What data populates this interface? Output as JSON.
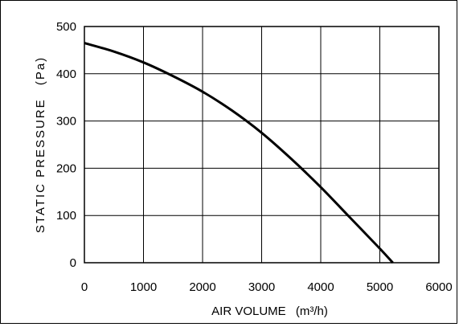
{
  "chart_data": {
    "type": "line",
    "xlabel": "AIR VOLUME",
    "xlabel_unit": "(m³/h)",
    "ylabel": "STATIC PRESSURE",
    "ylabel_unit": "(Pa)",
    "xlim": [
      0,
      6000
    ],
    "ylim": [
      0,
      500
    ],
    "x_ticks": [
      "0",
      "1000",
      "2000",
      "3000",
      "4000",
      "5000",
      "6000"
    ],
    "y_ticks": [
      "0",
      "100",
      "200",
      "300",
      "400",
      "500"
    ],
    "grid": true,
    "series": [
      {
        "x": [
          0,
          500,
          1000,
          1500,
          2000,
          2500,
          3000,
          3500,
          4000,
          4500,
          5000,
          5220
        ],
        "y": [
          465,
          447,
          424,
          395,
          362,
          322,
          275,
          220,
          160,
          95,
          30,
          0
        ]
      }
    ],
    "line_color": "#000000"
  }
}
